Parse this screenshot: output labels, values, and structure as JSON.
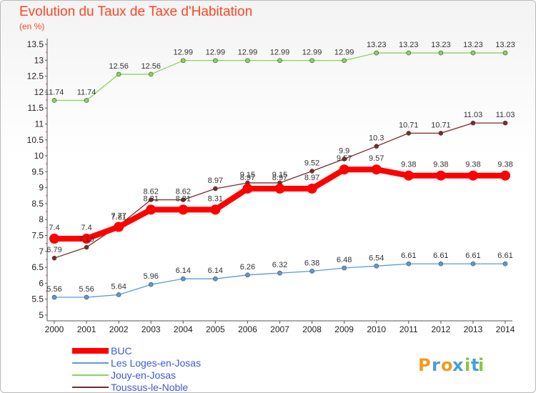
{
  "header": {
    "title": "Evolution du Taux de Taxe d'Habitation",
    "unit": "(en %)"
  },
  "brand": {
    "letters": [
      "P",
      "r",
      "o",
      "x",
      "i",
      "t",
      "i"
    ],
    "colors": [
      "#f39a1e",
      "#46a0d6",
      "#f39a1e",
      "#46a0d6",
      "#8cc63f",
      "#46a0d6",
      "#8cc63f"
    ]
  },
  "chart_data": {
    "type": "line",
    "x": [
      2000,
      2001,
      2002,
      2003,
      2004,
      2005,
      2006,
      2007,
      2008,
      2009,
      2010,
      2011,
      2012,
      2013,
      2014
    ],
    "ylim": [
      5,
      13.5
    ],
    "yticks": [
      5,
      5.5,
      6,
      6.5,
      7,
      7.5,
      8,
      8.5,
      9,
      9.5,
      10,
      10.5,
      11,
      11.5,
      12,
      12.5,
      13,
      13.5
    ],
    "grid": false,
    "legend_position": "bottom-left",
    "series": [
      {
        "name": "BUC",
        "color": "#ff0000",
        "values": [
          7.4,
          7.4,
          7.77,
          8.31,
          8.31,
          8.31,
          8.97,
          8.97,
          8.97,
          9.57,
          9.57,
          9.38,
          9.38,
          9.38,
          9.38
        ],
        "labels": [
          "7.4",
          "7.4",
          "7.77",
          "8.31",
          "8.31",
          "8.31",
          "8.97",
          "8.97",
          "8.97",
          "9.57",
          "9.57",
          "9.38",
          "9.38",
          "9.38",
          "9.38"
        ]
      },
      {
        "name": "Les Loges-en-Josas",
        "color": "#5b9bd5",
        "values": [
          5.56,
          5.56,
          5.64,
          5.96,
          6.14,
          6.14,
          6.26,
          6.32,
          6.38,
          6.48,
          6.54,
          6.61,
          6.61,
          6.61,
          6.61
        ],
        "labels": [
          "5.56",
          "5.56",
          "5.64",
          "5.96",
          "6.14",
          "6.14",
          "6.26",
          "6.32",
          "6.38",
          "6.48",
          "6.54",
          "6.61",
          "6.61",
          "6.61",
          "6.61"
        ]
      },
      {
        "name": "Jouy-en-Josas",
        "color": "#88d45a",
        "values": [
          11.74,
          11.74,
          12.56,
          12.56,
          12.99,
          12.99,
          12.99,
          12.99,
          12.99,
          12.99,
          13.23,
          13.23,
          13.23,
          13.23,
          13.23
        ],
        "labels": [
          "11.74",
          "11.74",
          "12.56",
          "12.56",
          "12.99",
          "12.99",
          "12.99",
          "12.99",
          "12.99",
          "12.99",
          "13.23",
          "13.23",
          "13.23",
          "13.23",
          "13.23"
        ]
      },
      {
        "name": "Toussus-le-Noble",
        "color": "#7b2a2a",
        "values": [
          6.79,
          7.13,
          7.81,
          8.62,
          8.62,
          8.97,
          9.15,
          9.15,
          9.52,
          9.9,
          10.3,
          10.71,
          10.71,
          11.03,
          11.03
        ],
        "labels": [
          "6.79",
          "7.13",
          "7.81",
          "8.62",
          "8.62",
          "8.97",
          "9.15",
          "9.15",
          "9.52",
          "9.9",
          "10.3",
          "10.71",
          "10.71",
          "11.03",
          "11.03"
        ]
      }
    ]
  }
}
